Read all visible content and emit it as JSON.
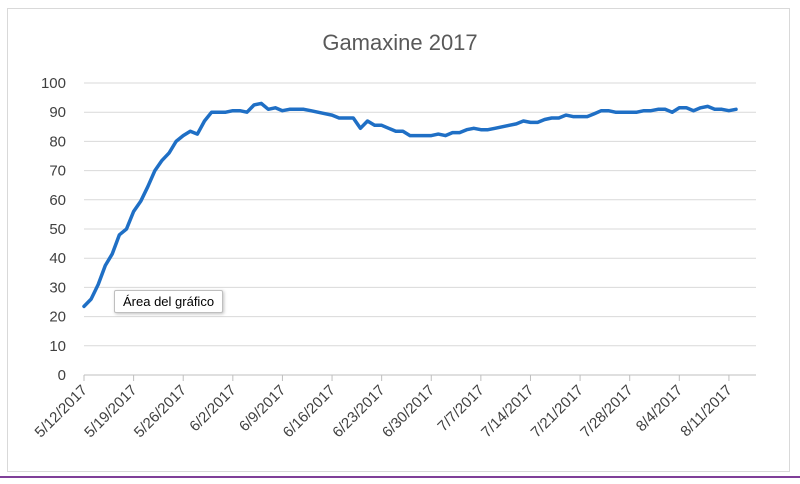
{
  "tooltip": "Área del gráfico",
  "chart_data": {
    "type": "line",
    "title": "Gamaxine 2017",
    "xlabel": "",
    "ylabel": "",
    "ylim": [
      0,
      100
    ],
    "yticks": [
      0,
      10,
      20,
      30,
      40,
      50,
      60,
      70,
      80,
      90,
      100
    ],
    "x_tick_labels": [
      "5/12/2017",
      "5/19/2017",
      "5/26/2017",
      "6/2/2017",
      "6/9/2017",
      "6/16/2017",
      "6/23/2017",
      "6/30/2017",
      "7/7/2017",
      "7/14/2017",
      "7/21/2017",
      "7/28/2017",
      "8/4/2017",
      "8/11/2017"
    ],
    "grid": "horizontal",
    "line_color": "#1f6fc5",
    "series": [
      {
        "x": [
          "5/12/2017",
          "5/13/2017",
          "5/14/2017",
          "5/15/2017",
          "5/16/2017",
          "5/17/2017",
          "5/18/2017",
          "5/19/2017",
          "5/20/2017",
          "5/21/2017",
          "5/22/2017",
          "5/23/2017",
          "5/24/2017",
          "5/25/2017",
          "5/26/2017",
          "5/27/2017",
          "5/28/2017",
          "5/29/2017",
          "5/30/2017",
          "5/31/2017",
          "6/1/2017",
          "6/2/2017",
          "6/3/2017",
          "6/4/2017",
          "6/5/2017",
          "6/6/2017",
          "6/7/2017",
          "6/8/2017",
          "6/9/2017",
          "6/10/2017",
          "6/11/2017",
          "6/12/2017",
          "6/13/2017",
          "6/14/2017",
          "6/15/2017",
          "6/16/2017",
          "6/17/2017",
          "6/18/2017",
          "6/19/2017",
          "6/20/2017",
          "6/21/2017",
          "6/22/2017",
          "6/23/2017",
          "6/24/2017",
          "6/25/2017",
          "6/26/2017",
          "6/27/2017",
          "6/28/2017",
          "6/29/2017",
          "6/30/2017",
          "7/1/2017",
          "7/2/2017",
          "7/3/2017",
          "7/4/2017",
          "7/5/2017",
          "7/6/2017",
          "7/7/2017",
          "7/8/2017",
          "7/9/2017",
          "7/10/2017",
          "7/11/2017",
          "7/12/2017",
          "7/13/2017",
          "7/14/2017",
          "7/15/2017",
          "7/16/2017",
          "7/17/2017",
          "7/18/2017",
          "7/19/2017",
          "7/20/2017",
          "7/21/2017",
          "7/22/2017",
          "7/23/2017",
          "7/24/2017",
          "7/25/2017",
          "7/26/2017",
          "7/27/2017",
          "7/28/2017",
          "7/29/2017",
          "7/30/2017",
          "7/31/2017",
          "8/1/2017",
          "8/2/2017",
          "8/3/2017",
          "8/4/2017",
          "8/5/2017",
          "8/6/2017",
          "8/7/2017",
          "8/8/2017",
          "8/9/2017",
          "8/10/2017",
          "8/11/2017",
          "8/12/2017"
        ],
        "values": [
          23.5,
          26,
          31,
          37.5,
          41.5,
          48,
          50,
          56,
          59.5,
          64.5,
          70,
          73.5,
          76,
          80,
          82,
          83.5,
          82.5,
          87,
          90,
          90,
          90,
          90.5,
          90.5,
          90,
          92.5,
          93,
          91,
          91.5,
          90.5,
          91,
          91,
          91,
          90.5,
          90,
          89.5,
          89,
          88,
          88,
          88,
          84.5,
          87,
          85.5,
          85.5,
          84.5,
          83.5,
          83.5,
          82,
          82,
          82,
          82,
          82.5,
          82,
          83,
          83,
          84,
          84.5,
          84,
          84,
          84.5,
          85,
          85.5,
          86,
          87,
          86.5,
          86.5,
          87.5,
          88,
          88,
          89,
          88.5,
          88.5,
          88.5,
          89.5,
          90.5,
          90.5,
          90,
          90,
          90,
          90,
          90.5,
          90.5,
          91,
          91,
          90,
          91.5,
          91.5,
          90.5,
          91.5,
          92,
          91,
          91,
          90.5,
          91
        ]
      }
    ]
  }
}
